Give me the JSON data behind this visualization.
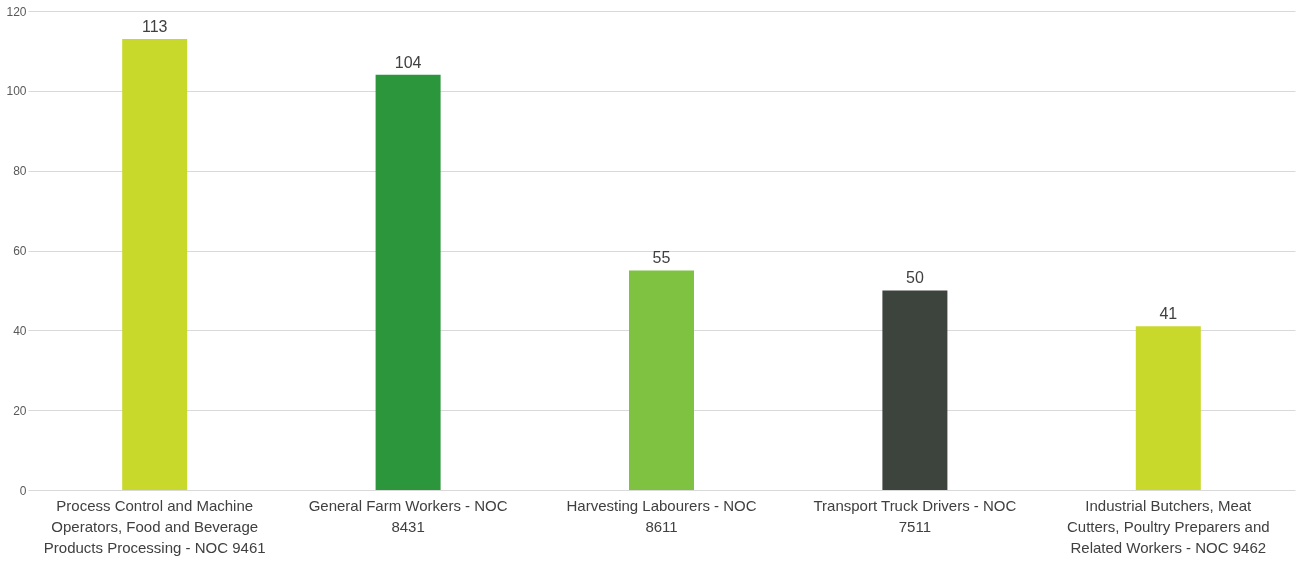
{
  "chart_data": {
    "type": "bar",
    "categories": [
      "Process Control and Machine Operators, Food and Beverage Products Processing - NOC 9461",
      "General Farm Workers - NOC 8431",
      "Harvesting Labourers - NOC 8611",
      "Transport Truck Drivers - NOC 7511",
      "Industrial Butchers, Meat Cutters, Poultry Preparers and Related Workers - NOC 9462"
    ],
    "values": [
      113,
      104,
      55,
      50,
      41
    ],
    "colors": [
      "#c8d92b",
      "#2b963c",
      "#7fc241",
      "#3d433d",
      "#c8d92b"
    ],
    "ylim": [
      0,
      120
    ],
    "yticks": [
      0,
      20,
      40,
      60,
      80,
      100,
      120
    ],
    "grid": "y",
    "data_labels": true
  }
}
